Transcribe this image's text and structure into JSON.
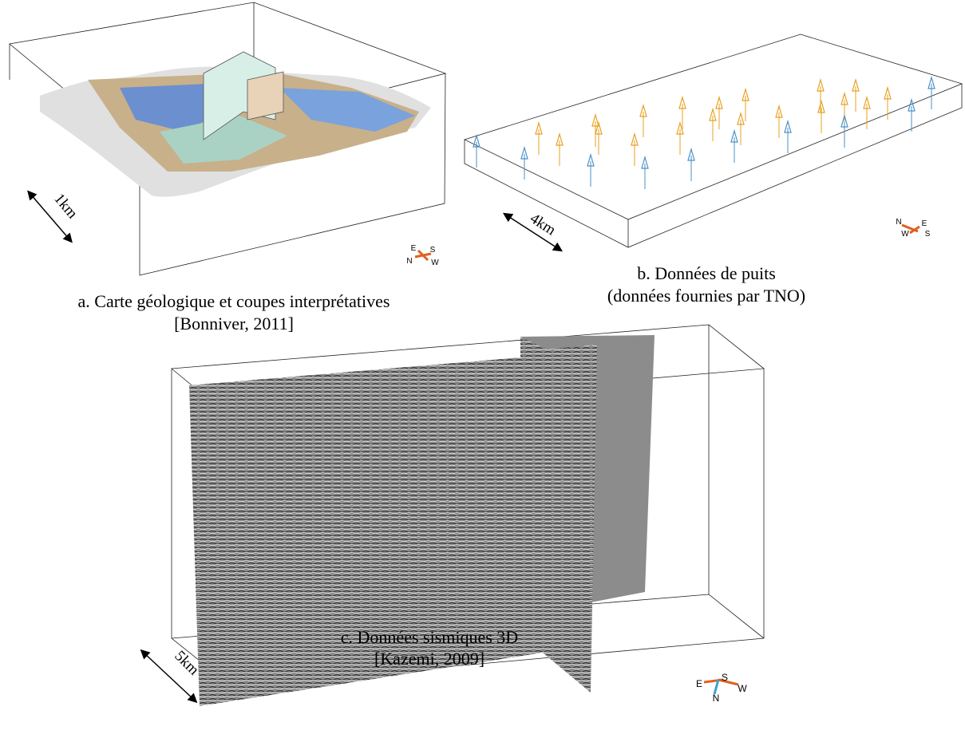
{
  "panels": [
    {
      "scale": "1km",
      "compass": [
        "E",
        "S",
        "N",
        "W"
      ],
      "caption": [
        "a. Carte géologique et coupes interprétatives",
        "[Bonniver, 2011]"
      ]
    },
    {
      "scale": "4km",
      "compass": [
        "N",
        "E",
        "W",
        "S"
      ],
      "caption": [
        "b. Données de puits",
        "(données fournies par TNO)"
      ]
    },
    {
      "scale": "5km",
      "compass": [
        "E",
        "S",
        "W",
        "N"
      ],
      "caption": [
        "c. Données sismiques 3D",
        "[Kazemi, 2009]"
      ]
    }
  ]
}
